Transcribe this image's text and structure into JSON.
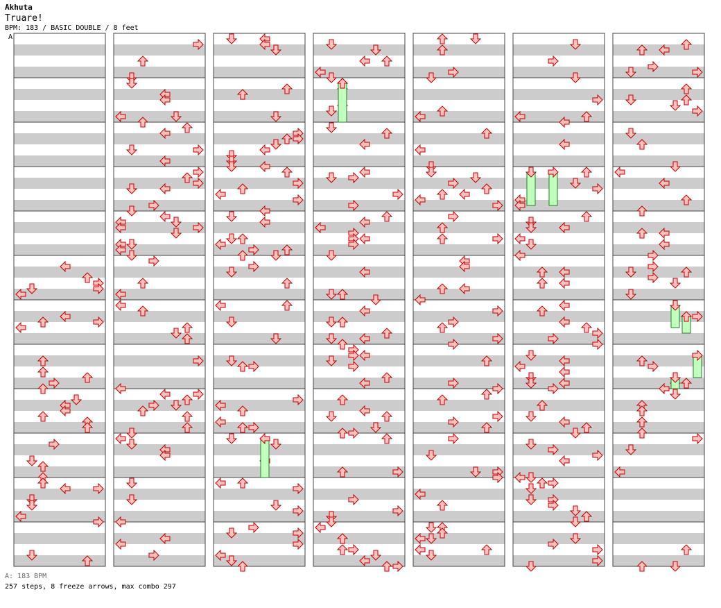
{
  "song": {
    "artist": "Akhuta",
    "title": "Truare!",
    "meta": "BPM: 183 / BASIC DOUBLE / 8 feet",
    "segment_marker": "A",
    "bpm_line": "A: 183 BPM",
    "stats": "257 steps, 8 freeze arrows, max combo 297"
  },
  "chart_data": {
    "type": "step-chart",
    "columns": 7,
    "measures_per_column": 12,
    "lanes": 8,
    "rows_per_measure": 8,
    "colors": {
      "arrow_fill": "#ffc0c0",
      "arrow_stroke": "#c00000",
      "freeze_fill": "#c0ffc0",
      "freeze_stroke": "#208020",
      "stripe_gray": "#cccccc",
      "stripe_white": "#ffffff",
      "border": "#444444"
    },
    "notes": [
      [
        [
          0,
          0,
          0
        ],
        [
          0,
          0,
          0
        ],
        [
          0,
          0,
          0
        ],
        [
          0,
          0,
          0
        ],
        [
          0,
          0,
          0
        ],
        [
          0,
          0,
          0
        ],
        [
          0,
          0,
          0
        ],
        [
          0,
          0,
          0
        ],
        [
          0,
          0,
          0
        ],
        [
          0,
          0,
          0
        ],
        [
          0,
          0,
          0
        ],
        [
          0,
          0,
          0
        ],
        [
          0,
          0,
          0
        ],
        [
          0,
          0,
          0
        ],
        [
          0,
          0,
          0
        ],
        [
          0,
          0,
          0
        ],
        [
          0,
          0,
          0
        ],
        [
          0,
          0,
          0
        ],
        [
          0,
          0,
          0
        ],
        [
          0,
          0,
          0
        ],
        [
          0,
          0,
          0
        ],
        [
          0,
          0,
          0
        ],
        [
          0,
          0,
          0
        ],
        [
          0,
          0,
          0
        ],
        [
          0,
          0,
          0
        ],
        [
          0,
          0,
          0
        ],
        [
          0,
          0,
          0
        ],
        [
          0,
          0,
          0
        ],
        [
          0,
          0,
          0
        ],
        [
          0,
          0,
          0
        ],
        [
          0,
          0,
          0
        ],
        [
          0,
          0,
          0
        ],
        [
          0,
          0,
          0
        ],
        [
          0,
          0,
          0
        ],
        [
          0,
          0,
          0
        ],
        [
          0,
          0,
          0
        ],
        [
          0,
          0,
          0
        ],
        [
          0,
          0,
          0
        ],
        [
          0,
          0,
          0
        ],
        [
          0,
          0,
          0
        ],
        [
          5,
          0,
          0
        ],
        [
          5,
          2,
          3
        ],
        [
          5,
          3,
          1
        ],
        [
          5,
          4,
          2
        ],
        [
          5,
          5,
          4
        ],
        [
          6,
          0,
          5
        ],
        [
          6,
          1,
          4
        ],
        [
          6,
          2,
          7
        ],
        [
          6,
          3,
          5
        ],
        [
          6,
          4,
          6
        ],
        [
          6,
          5,
          7
        ],
        [
          6,
          6,
          4
        ],
        [
          6,
          7,
          7
        ],
        [
          8,
          0,
          7
        ],
        [
          8,
          1,
          6
        ],
        [
          8,
          2,
          3
        ],
        [
          8,
          3,
          4
        ],
        [
          8,
          6,
          6
        ],
        [
          8,
          7,
          5
        ],
        [
          9,
          0,
          4
        ],
        [
          9,
          1,
          3
        ],
        [
          9,
          3,
          1
        ],
        [
          9,
          4,
          0
        ],
        [
          9,
          5,
          3
        ],
        [
          9,
          5,
          4
        ],
        [
          9,
          6,
          1
        ],
        [
          9,
          7,
          3
        ],
        [
          10,
          1,
          2
        ],
        [
          10,
          3,
          4
        ],
        [
          10,
          4,
          3
        ],
        [
          10,
          5,
          0
        ],
        [
          10,
          7,
          0
        ],
        [
          11,
          0,
          2
        ],
        [
          11,
          1,
          0
        ],
        [
          11,
          1,
          3
        ],
        [
          11,
          2,
          1
        ],
        [
          11,
          3,
          0
        ],
        [
          11,
          3,
          3
        ],
        [
          11,
          4,
          0
        ]
      ]
    ]
  }
}
